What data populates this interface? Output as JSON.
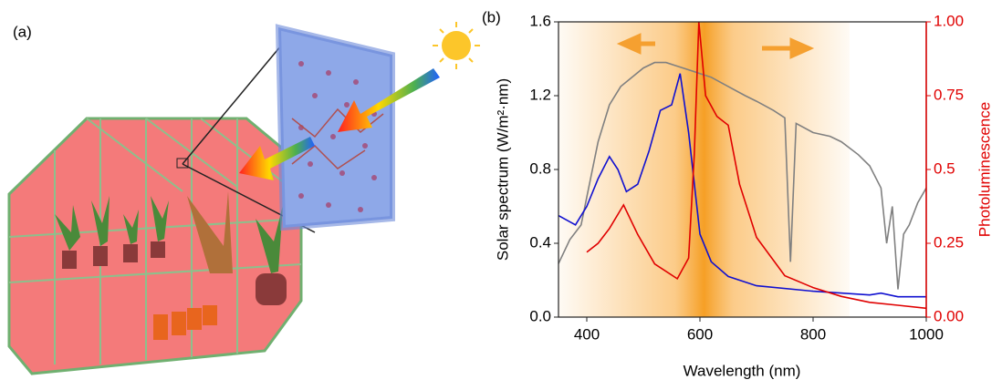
{
  "panel_a_label": "(a)",
  "chart_data": {
    "type": "line",
    "panel_label": "(b)",
    "xlabel": "Wavelength (nm)",
    "ylabel": "Solar spectrum (W/m²·nm)",
    "y2label": "Photoluminescence",
    "xlim": [
      350,
      1000
    ],
    "xticks": [
      400,
      600,
      800,
      1000
    ],
    "ylim": [
      0,
      1.6
    ],
    "yticks": [
      {
        "value": 0,
        "label": "0.0"
      },
      0.4,
      0.8,
      1.2,
      1.6
    ],
    "y2lim": [
      0,
      1
    ],
    "y2ticks": [
      {
        "value": 0,
        "label": "0.00"
      },
      0.25,
      0.5,
      0.75,
      {
        "value": 1,
        "label": "1.00"
      }
    ],
    "series": [
      {
        "color": "#808080",
        "x": [
          350,
          370,
          390,
          400,
          420,
          440,
          460,
          480,
          500,
          520,
          540,
          560,
          580,
          600,
          620,
          650,
          680,
          700,
          730,
          750,
          760,
          770,
          800,
          830,
          850,
          880,
          900,
          920,
          930,
          940,
          950,
          960,
          970,
          985,
          1000
        ],
        "values": [
          0.29,
          0.42,
          0.5,
          0.65,
          0.95,
          1.15,
          1.25,
          1.3,
          1.35,
          1.38,
          1.38,
          1.36,
          1.34,
          1.32,
          1.3,
          1.25,
          1.2,
          1.17,
          1.12,
          1.08,
          0.3,
          1.05,
          1.0,
          0.98,
          0.95,
          0.88,
          0.82,
          0.7,
          0.4,
          0.6,
          0.15,
          0.45,
          0.5,
          0.62,
          0.7
        ]
      },
      {
        "color": "#1010d0",
        "x": [
          350,
          380,
          400,
          420,
          440,
          455,
          470,
          490,
          510,
          530,
          550,
          565,
          580,
          600,
          620,
          650,
          700,
          800,
          900,
          920,
          950,
          1000
        ],
        "values": [
          0.55,
          0.5,
          0.6,
          0.75,
          0.87,
          0.8,
          0.68,
          0.72,
          0.9,
          1.12,
          1.15,
          1.32,
          1.0,
          0.45,
          0.3,
          0.22,
          0.17,
          0.14,
          0.12,
          0.13,
          0.11,
          0.11
        ]
      },
      {
        "color": "#e00000",
        "axis": "y2",
        "x": [
          400,
          420,
          440,
          465,
          490,
          520,
          560,
          580,
          590,
          598,
          610,
          630,
          650,
          670,
          700,
          750,
          800,
          850,
          900,
          950,
          1000
        ],
        "values": [
          0.22,
          0.25,
          0.3,
          0.38,
          0.28,
          0.18,
          0.13,
          0.2,
          0.55,
          1.0,
          0.75,
          0.68,
          0.65,
          0.45,
          0.27,
          0.14,
          0.1,
          0.07,
          0.05,
          0.04,
          0.03
        ]
      }
    ]
  }
}
